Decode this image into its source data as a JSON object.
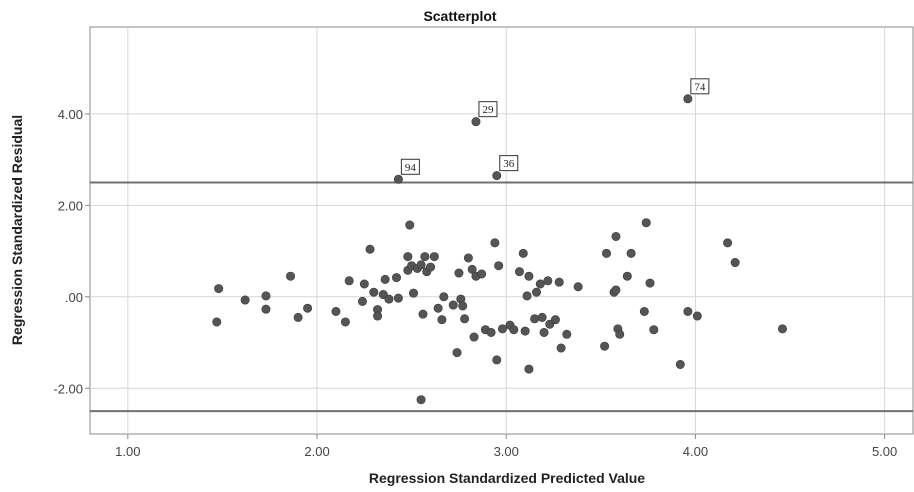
{
  "chart_data": {
    "type": "scatter",
    "title": "Scatterplot",
    "xlabel": "Regression Standardized Predicted Value",
    "ylabel": "Regression Standardized Residual",
    "xlim": [
      0.8,
      5.15
    ],
    "ylim": [
      -3.0,
      5.9
    ],
    "x_ticks": [
      1.0,
      2.0,
      3.0,
      4.0,
      5.0
    ],
    "x_tick_labels": [
      "1.00",
      "2.00",
      "3.00",
      "4.00",
      "5.00"
    ],
    "y_ticks": [
      -2.0,
      0.0,
      2.0,
      4.0
    ],
    "y_tick_labels": [
      "-2.00",
      ".00",
      "2.00",
      "4.00"
    ],
    "grid": true,
    "reference_lines_y": [
      2.5,
      -2.5
    ],
    "colors": {
      "point": "#555555",
      "gridline": "#d6d6d6",
      "reference_line": "#707070",
      "axis": "#888888"
    },
    "labeled_points": [
      {
        "label": "74",
        "x": 3.96,
        "y": 4.33
      },
      {
        "label": "29",
        "x": 2.84,
        "y": 3.83
      },
      {
        "label": "94",
        "x": 2.43,
        "y": 2.57
      },
      {
        "label": "36",
        "x": 2.95,
        "y": 2.65
      }
    ],
    "points": [
      {
        "x": 1.47,
        "y": -0.55
      },
      {
        "x": 1.48,
        "y": 0.18
      },
      {
        "x": 1.62,
        "y": -0.07
      },
      {
        "x": 1.73,
        "y": 0.02
      },
      {
        "x": 1.73,
        "y": -0.27
      },
      {
        "x": 1.86,
        "y": 0.45
      },
      {
        "x": 1.9,
        "y": -0.45
      },
      {
        "x": 1.95,
        "y": -0.25
      },
      {
        "x": 2.1,
        "y": -0.32
      },
      {
        "x": 2.15,
        "y": -0.55
      },
      {
        "x": 2.17,
        "y": 0.35
      },
      {
        "x": 2.24,
        "y": -0.1
      },
      {
        "x": 2.25,
        "y": 0.28
      },
      {
        "x": 2.28,
        "y": 1.04
      },
      {
        "x": 2.3,
        "y": 0.1
      },
      {
        "x": 2.32,
        "y": -0.28
      },
      {
        "x": 2.32,
        "y": -0.42
      },
      {
        "x": 2.35,
        "y": 0.05
      },
      {
        "x": 2.36,
        "y": 0.38
      },
      {
        "x": 2.38,
        "y": -0.05
      },
      {
        "x": 2.42,
        "y": 0.42
      },
      {
        "x": 2.43,
        "y": -0.03
      },
      {
        "x": 2.48,
        "y": 0.58
      },
      {
        "x": 2.48,
        "y": 0.88
      },
      {
        "x": 2.49,
        "y": 1.57
      },
      {
        "x": 2.5,
        "y": 0.68
      },
      {
        "x": 2.51,
        "y": 0.08
      },
      {
        "x": 2.53,
        "y": 0.62
      },
      {
        "x": 2.55,
        "y": 0.7
      },
      {
        "x": 2.56,
        "y": -0.38
      },
      {
        "x": 2.57,
        "y": 0.88
      },
      {
        "x": 2.58,
        "y": 0.55
      },
      {
        "x": 2.6,
        "y": 0.65
      },
      {
        "x": 2.62,
        "y": 0.88
      },
      {
        "x": 2.55,
        "y": -2.25
      },
      {
        "x": 2.64,
        "y": -0.25
      },
      {
        "x": 2.66,
        "y": -0.5
      },
      {
        "x": 2.67,
        "y": 0.0
      },
      {
        "x": 2.72,
        "y": -0.18
      },
      {
        "x": 2.74,
        "y": -1.22
      },
      {
        "x": 2.75,
        "y": 0.52
      },
      {
        "x": 2.76,
        "y": -0.05
      },
      {
        "x": 2.77,
        "y": -0.2
      },
      {
        "x": 2.78,
        "y": -0.48
      },
      {
        "x": 2.8,
        "y": 0.85
      },
      {
        "x": 2.82,
        "y": 0.6
      },
      {
        "x": 2.83,
        "y": -0.88
      },
      {
        "x": 2.84,
        "y": 0.45
      },
      {
        "x": 2.87,
        "y": 0.5
      },
      {
        "x": 2.89,
        "y": -0.72
      },
      {
        "x": 2.92,
        "y": -0.78
      },
      {
        "x": 2.94,
        "y": 1.18
      },
      {
        "x": 2.95,
        "y": -1.38
      },
      {
        "x": 2.96,
        "y": 0.68
      },
      {
        "x": 2.98,
        "y": -0.7
      },
      {
        "x": 3.02,
        "y": -0.62
      },
      {
        "x": 3.04,
        "y": -0.72
      },
      {
        "x": 3.07,
        "y": 0.55
      },
      {
        "x": 3.09,
        "y": 0.95
      },
      {
        "x": 3.1,
        "y": -0.75
      },
      {
        "x": 3.11,
        "y": 0.02
      },
      {
        "x": 3.12,
        "y": 0.45
      },
      {
        "x": 3.12,
        "y": -1.58
      },
      {
        "x": 3.15,
        "y": -0.48
      },
      {
        "x": 3.16,
        "y": 0.1
      },
      {
        "x": 3.18,
        "y": 0.28
      },
      {
        "x": 3.19,
        "y": -0.45
      },
      {
        "x": 3.2,
        "y": -0.78
      },
      {
        "x": 3.22,
        "y": 0.35
      },
      {
        "x": 3.23,
        "y": -0.6
      },
      {
        "x": 3.26,
        "y": -0.5
      },
      {
        "x": 3.28,
        "y": 0.32
      },
      {
        "x": 3.29,
        "y": -1.12
      },
      {
        "x": 3.32,
        "y": -0.82
      },
      {
        "x": 3.38,
        "y": 0.22
      },
      {
        "x": 3.52,
        "y": -1.08
      },
      {
        "x": 3.53,
        "y": 0.95
      },
      {
        "x": 3.57,
        "y": 0.1
      },
      {
        "x": 3.58,
        "y": 0.15
      },
      {
        "x": 3.58,
        "y": 1.32
      },
      {
        "x": 3.59,
        "y": -0.7
      },
      {
        "x": 3.6,
        "y": -0.82
      },
      {
        "x": 3.64,
        "y": 0.45
      },
      {
        "x": 3.66,
        "y": 0.95
      },
      {
        "x": 3.73,
        "y": -0.32
      },
      {
        "x": 3.74,
        "y": 1.62
      },
      {
        "x": 3.76,
        "y": 0.3
      },
      {
        "x": 3.78,
        "y": -0.72
      },
      {
        "x": 3.92,
        "y": -1.48
      },
      {
        "x": 3.96,
        "y": -0.32
      },
      {
        "x": 4.01,
        "y": -0.42
      },
      {
        "x": 4.17,
        "y": 1.18
      },
      {
        "x": 4.21,
        "y": 0.75
      },
      {
        "x": 4.46,
        "y": -0.7
      }
    ]
  }
}
